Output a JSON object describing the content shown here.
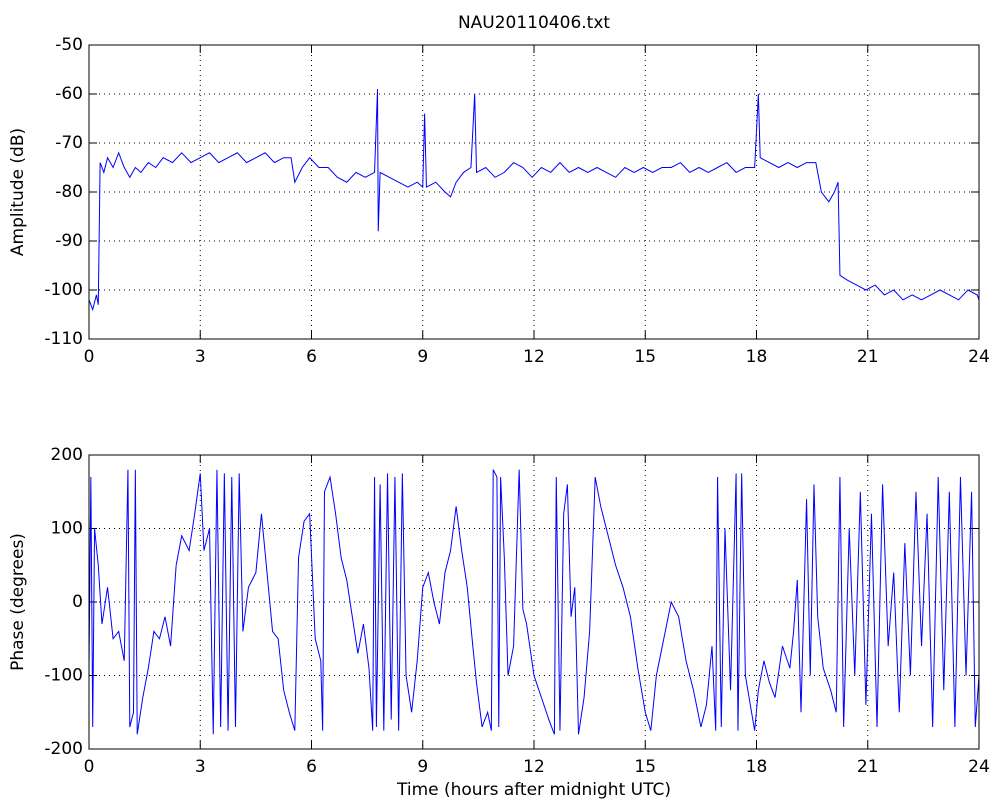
{
  "chart_data": [
    {
      "type": "line",
      "title": "NAU20110406.txt",
      "ylabel": "Amplitude (dB)",
      "grid": true,
      "xlim": [
        0,
        24
      ],
      "xticks": [
        0,
        3,
        6,
        9,
        12,
        15,
        18,
        21,
        24
      ],
      "ylim": [
        -110,
        -50
      ],
      "yticks": [
        -110,
        -100,
        -90,
        -80,
        -70,
        -60,
        -50
      ],
      "x": [
        0,
        0.1,
        0.2,
        0.25,
        0.3,
        0.4,
        0.5,
        0.65,
        0.8,
        0.95,
        1.1,
        1.25,
        1.4,
        1.6,
        1.8,
        2.0,
        2.25,
        2.5,
        2.75,
        3.0,
        3.25,
        3.5,
        3.75,
        4.0,
        4.25,
        4.5,
        4.75,
        5.0,
        5.25,
        5.45,
        5.55,
        5.75,
        5.95,
        6.2,
        6.45,
        6.7,
        6.95,
        7.2,
        7.45,
        7.7,
        7.78,
        7.8,
        7.85,
        8.1,
        8.35,
        8.6,
        8.85,
        9.0,
        9.05,
        9.1,
        9.35,
        9.6,
        9.75,
        9.9,
        10.1,
        10.3,
        10.4,
        10.45,
        10.7,
        10.95,
        11.2,
        11.45,
        11.7,
        11.95,
        12.2,
        12.45,
        12.7,
        12.95,
        13.2,
        13.45,
        13.7,
        13.95,
        14.2,
        14.45,
        14.7,
        14.95,
        15.2,
        15.45,
        15.7,
        15.95,
        16.2,
        16.45,
        16.7,
        16.95,
        17.2,
        17.45,
        17.7,
        17.95,
        18.05,
        18.1,
        18.35,
        18.6,
        18.85,
        19.1,
        19.35,
        19.6,
        19.75,
        19.95,
        20.1,
        20.2,
        20.25,
        20.45,
        20.7,
        20.95,
        21.2,
        21.45,
        21.7,
        21.95,
        22.2,
        22.45,
        22.7,
        22.95,
        23.2,
        23.45,
        23.7,
        23.95,
        24.0
      ],
      "series": [
        {
          "color": "#0000ff",
          "values": [
            -102,
            -104,
            -101,
            -103,
            -74,
            -76,
            -73,
            -75,
            -72,
            -75,
            -77,
            -75,
            -76,
            -74,
            -75,
            -73,
            -74,
            -72,
            -74,
            -73,
            -72,
            -74,
            -73,
            -72,
            -74,
            -73,
            -72,
            -74,
            -73,
            -73,
            -78,
            -75,
            -73,
            -75,
            -75,
            -77,
            -78,
            -76,
            -77,
            -76,
            -59,
            -88,
            -76,
            -77,
            -78,
            -79,
            -78,
            -79,
            -64,
            -79,
            -78,
            -80,
            -81,
            -78,
            -76,
            -75,
            -60,
            -76,
            -75,
            -77,
            -76,
            -74,
            -75,
            -77,
            -75,
            -76,
            -74,
            -76,
            -75,
            -76,
            -75,
            -76,
            -77,
            -75,
            -76,
            -75,
            -76,
            -75,
            -75,
            -74,
            -76,
            -75,
            -76,
            -75,
            -74,
            -76,
            -75,
            -75,
            -60,
            -73,
            -74,
            -75,
            -74,
            -75,
            -74,
            -74,
            -80,
            -82,
            -80,
            -78,
            -97,
            -98,
            -99,
            -100,
            -99,
            -101,
            -100,
            -102,
            -101,
            -102,
            -101,
            -100,
            -101,
            -102,
            -100,
            -101,
            -102
          ]
        }
      ]
    },
    {
      "type": "line",
      "ylabel": "Phase (degrees)",
      "xlabel": "Time (hours after midnight UTC)",
      "grid": true,
      "xlim": [
        0,
        24
      ],
      "xticks": [
        0,
        3,
        6,
        9,
        12,
        15,
        18,
        21,
        24
      ],
      "ylim": [
        -200,
        200
      ],
      "yticks": [
        -200,
        -100,
        0,
        100,
        200
      ],
      "x": [
        0,
        0.05,
        0.1,
        0.15,
        0.25,
        0.35,
        0.5,
        0.65,
        0.8,
        0.95,
        1.05,
        1.1,
        1.2,
        1.25,
        1.3,
        1.45,
        1.6,
        1.75,
        1.9,
        2.05,
        2.2,
        2.35,
        2.5,
        2.7,
        2.85,
        3.0,
        3.1,
        3.25,
        3.35,
        3.45,
        3.55,
        3.65,
        3.75,
        3.85,
        3.95,
        4.05,
        4.15,
        4.3,
        4.5,
        4.65,
        4.8,
        4.95,
        5.1,
        5.25,
        5.4,
        5.55,
        5.65,
        5.8,
        5.95,
        6.1,
        6.25,
        6.3,
        6.35,
        6.5,
        6.65,
        6.8,
        6.95,
        7.1,
        7.25,
        7.4,
        7.55,
        7.65,
        7.7,
        7.75,
        7.85,
        7.95,
        8.05,
        8.15,
        8.25,
        8.35,
        8.45,
        8.55,
        8.7,
        8.85,
        9.0,
        9.15,
        9.3,
        9.45,
        9.6,
        9.75,
        9.9,
        10.05,
        10.2,
        10.35,
        10.45,
        10.6,
        10.75,
        10.85,
        10.9,
        11.0,
        11.05,
        11.1,
        11.2,
        11.3,
        11.45,
        11.6,
        11.7,
        11.8,
        12.0,
        12.2,
        12.4,
        12.55,
        12.6,
        12.7,
        12.8,
        12.9,
        13.0,
        13.1,
        13.2,
        13.35,
        13.5,
        13.65,
        13.8,
        14.0,
        14.2,
        14.4,
        14.6,
        14.8,
        15.0,
        15.15,
        15.3,
        15.5,
        15.7,
        15.9,
        16.1,
        16.3,
        16.5,
        16.65,
        16.8,
        16.9,
        16.95,
        17.05,
        17.15,
        17.3,
        17.45,
        17.5,
        17.6,
        17.7,
        17.8,
        17.95,
        18.05,
        18.2,
        18.35,
        18.5,
        18.7,
        18.9,
        19.0,
        19.1,
        19.2,
        19.35,
        19.45,
        19.55,
        19.65,
        19.8,
        20.0,
        20.15,
        20.25,
        20.35,
        20.5,
        20.65,
        20.8,
        20.95,
        21.1,
        21.25,
        21.4,
        21.55,
        21.7,
        21.85,
        22.0,
        22.15,
        22.3,
        22.45,
        22.6,
        22.75,
        22.9,
        23.05,
        23.2,
        23.35,
        23.5,
        23.65,
        23.8,
        23.9,
        24.0
      ],
      "series": [
        {
          "color": "#0000ff",
          "values": [
            -90,
            170,
            -170,
            100,
            50,
            -30,
            20,
            -50,
            -40,
            -80,
            180,
            -170,
            -150,
            180,
            -180,
            -130,
            -90,
            -40,
            -50,
            -20,
            -60,
            50,
            90,
            70,
            120,
            175,
            70,
            100,
            -180,
            180,
            -170,
            175,
            -175,
            170,
            -170,
            175,
            -40,
            20,
            40,
            120,
            40,
            -40,
            -50,
            -120,
            -150,
            -175,
            60,
            110,
            120,
            -50,
            -80,
            -175,
            150,
            170,
            120,
            60,
            30,
            -20,
            -70,
            -30,
            -90,
            -175,
            170,
            -170,
            160,
            -175,
            175,
            -160,
            170,
            -175,
            175,
            -100,
            -150,
            -80,
            20,
            40,
            0,
            -30,
            40,
            70,
            130,
            70,
            20,
            -60,
            -110,
            -170,
            -150,
            -175,
            180,
            170,
            -170,
            170,
            60,
            -100,
            -60,
            180,
            -10,
            -30,
            -100,
            -130,
            -160,
            -180,
            170,
            -175,
            120,
            160,
            -20,
            20,
            -180,
            -130,
            -40,
            170,
            130,
            90,
            50,
            20,
            -20,
            -90,
            -150,
            -175,
            -100,
            -50,
            0,
            -20,
            -80,
            -120,
            -170,
            -140,
            -60,
            -175,
            170,
            -170,
            100,
            -120,
            175,
            -175,
            175,
            -100,
            -130,
            -175,
            -120,
            -80,
            -110,
            -130,
            -60,
            -90,
            -40,
            30,
            -150,
            140,
            -100,
            160,
            -20,
            -90,
            -120,
            -150,
            170,
            -170,
            100,
            -100,
            150,
            -140,
            120,
            -170,
            160,
            -60,
            40,
            -150,
            80,
            -100,
            150,
            -60,
            120,
            -170,
            170,
            -120,
            150,
            -170,
            170,
            -100,
            150,
            -170,
            -100
          ]
        }
      ]
    }
  ]
}
